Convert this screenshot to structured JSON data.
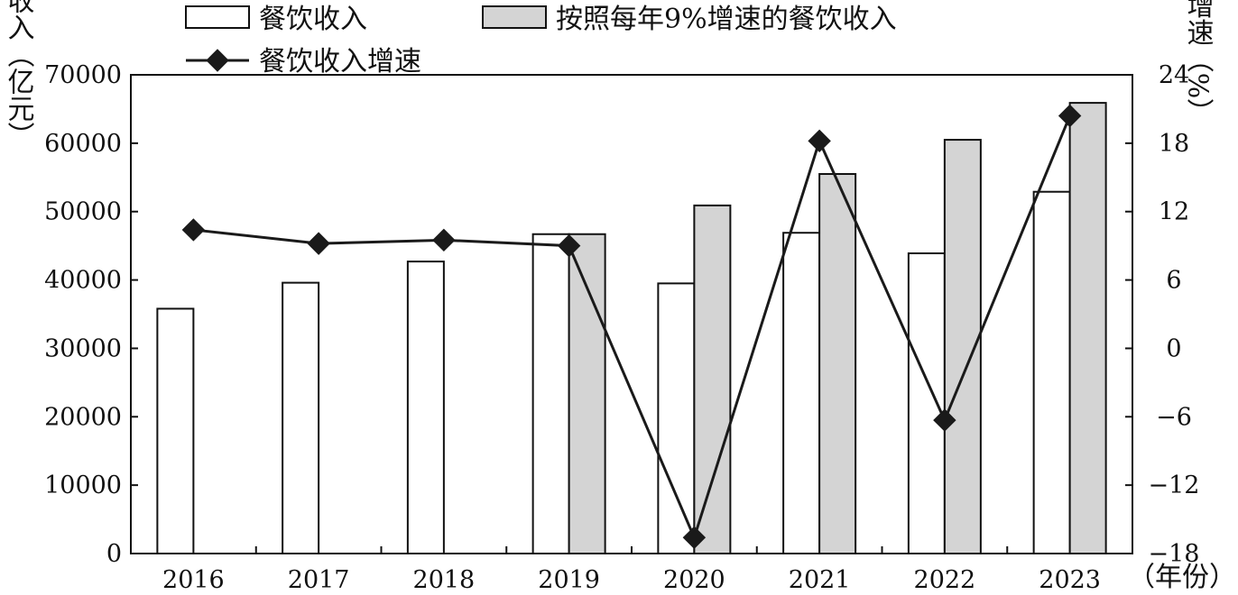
{
  "chart_data": {
    "type": "bar",
    "categories": [
      "2016",
      "2017",
      "2018",
      "2019",
      "2020",
      "2021",
      "2022",
      "2023"
    ],
    "xlabel": "（年份）",
    "ylabel": "收入（亿元）",
    "y2label": "增速（%）",
    "ylim": [
      0,
      70000
    ],
    "y2lim": [
      -18,
      24
    ],
    "yticks": [
      "0",
      "10000",
      "20000",
      "30000",
      "40000",
      "50000",
      "60000",
      "70000"
    ],
    "y2ticks": [
      "−18",
      "−12",
      "−6",
      "0",
      "6",
      "12",
      "18",
      "24"
    ],
    "grid": false,
    "legend_position": "top",
    "series": [
      {
        "name": "餐饮收入",
        "kind": "bar",
        "color": "#ffffff",
        "values": [
          35800,
          39600,
          42700,
          46700,
          39500,
          46900,
          43900,
          52900
        ]
      },
      {
        "name": "按照每年9%增速的餐饮收入",
        "kind": "bar",
        "color": "#d4d4d4",
        "values": [
          null,
          null,
          null,
          46700,
          50900,
          55500,
          60500,
          65900
        ]
      },
      {
        "name": "餐饮收入增速",
        "kind": "line",
        "axis": "right",
        "color": "#1a1a1a",
        "values": [
          10.4,
          9.2,
          9.5,
          9.0,
          -16.6,
          18.2,
          -6.3,
          20.4
        ]
      }
    ]
  }
}
